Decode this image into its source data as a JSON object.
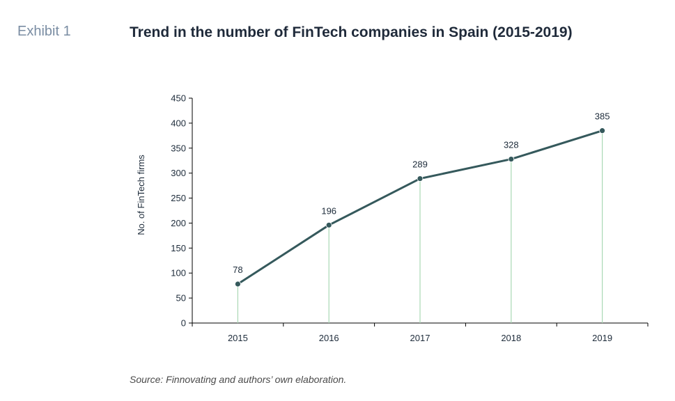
{
  "header": {
    "exhibit_label": "Exhibit 1",
    "title": "Trend in the number of FinTech companies in Spain (2015-2019)"
  },
  "source": "Source: Finnovating and authors’ own elaboration.",
  "colors": {
    "line": "#35595c",
    "marker": "#35595c",
    "drop_line": "#a9d8b4",
    "axis": "#000000"
  },
  "chart_data": {
    "type": "line",
    "title": "Trend in the number of FinTech companies in Spain (2015-2019)",
    "xlabel": "",
    "ylabel": "No. of FinTech firms",
    "categories": [
      "2015",
      "2016",
      "2017",
      "2018",
      "2019"
    ],
    "values": [
      78,
      196,
      289,
      328,
      385
    ],
    "data_labels": [
      "78",
      "196",
      "289",
      "328",
      "385"
    ],
    "ylim": [
      0,
      450
    ],
    "yticks": [
      "0",
      "50",
      "100",
      "150",
      "200",
      "250",
      "300",
      "350",
      "400",
      "450"
    ],
    "grid": false,
    "legend": "none"
  }
}
